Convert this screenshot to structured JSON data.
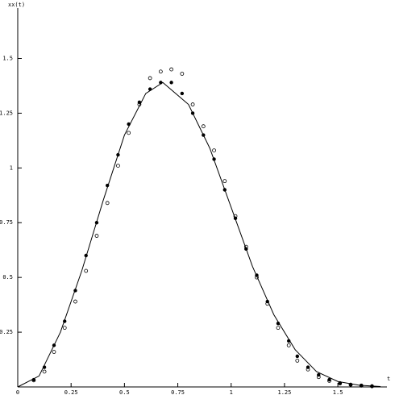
{
  "chart_data": {
    "type": "scatter",
    "y_label": "xx(t)",
    "x_label": "t",
    "xlim": [
      0,
      1.73
    ],
    "ylim": [
      0,
      1.73
    ],
    "xticks": [
      0,
      0.25,
      0.5,
      0.75,
      1,
      1.25,
      1.5
    ],
    "yticks": [
      0.25,
      0.5,
      0.75,
      1,
      1.25,
      1.5
    ],
    "series": [
      {
        "marker": "line",
        "color": "#000000",
        "x": [
          0,
          0.1,
          0.2,
          0.3,
          0.4,
          0.5,
          0.6,
          0.68,
          0.8,
          0.9,
          1.0,
          1.1,
          1.2,
          1.3,
          1.4,
          1.5,
          1.6,
          1.7
        ],
        "values": [
          0,
          0.05,
          0.25,
          0.53,
          0.85,
          1.15,
          1.34,
          1.39,
          1.29,
          1.09,
          0.82,
          0.55,
          0.33,
          0.17,
          0.07,
          0.025,
          0.008,
          0.002
        ]
      },
      {
        "marker": "dot",
        "color": "#000000",
        "x": [
          0.075,
          0.125,
          0.17,
          0.22,
          0.27,
          0.32,
          0.37,
          0.42,
          0.47,
          0.52,
          0.57,
          0.62,
          0.67,
          0.72,
          0.77,
          0.82,
          0.87,
          0.92,
          0.97,
          1.02,
          1.07,
          1.12,
          1.17,
          1.22,
          1.27,
          1.31,
          1.36,
          1.41,
          1.46,
          1.51,
          1.56,
          1.61,
          1.66
        ],
        "values": [
          0.033,
          0.09,
          0.19,
          0.3,
          0.44,
          0.6,
          0.75,
          0.92,
          1.06,
          1.2,
          1.3,
          1.36,
          1.39,
          1.39,
          1.34,
          1.25,
          1.15,
          1.04,
          0.9,
          0.77,
          0.63,
          0.51,
          0.39,
          0.29,
          0.21,
          0.14,
          0.09,
          0.055,
          0.033,
          0.018,
          0.011,
          0.007,
          0.004
        ]
      },
      {
        "marker": "circle",
        "color": "#000000",
        "x": [
          0.075,
          0.125,
          0.17,
          0.22,
          0.27,
          0.32,
          0.37,
          0.42,
          0.47,
          0.52,
          0.57,
          0.62,
          0.67,
          0.72,
          0.77,
          0.82,
          0.87,
          0.92,
          0.97,
          1.02,
          1.07,
          1.12,
          1.17,
          1.22,
          1.27,
          1.31,
          1.36,
          1.41,
          1.46,
          1.51,
          1.56,
          1.61,
          1.66
        ],
        "values": [
          0.03,
          0.07,
          0.16,
          0.27,
          0.39,
          0.53,
          0.69,
          0.84,
          1.01,
          1.16,
          1.29,
          1.41,
          1.44,
          1.45,
          1.43,
          1.29,
          1.19,
          1.08,
          0.94,
          0.78,
          0.64,
          0.5,
          0.38,
          0.27,
          0.19,
          0.12,
          0.08,
          0.045,
          0.028,
          0.016,
          0.01,
          0.006,
          0.003
        ]
      }
    ]
  }
}
